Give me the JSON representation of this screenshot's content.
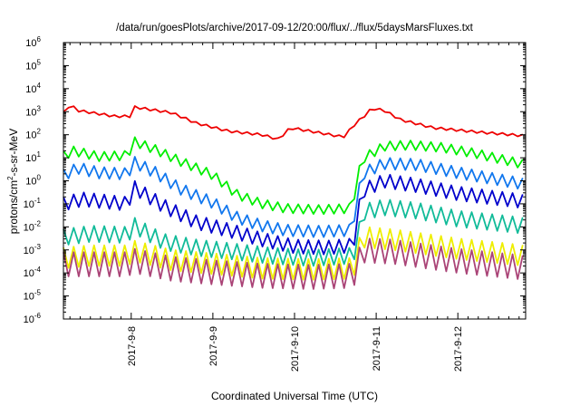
{
  "chart_data": {
    "type": "line",
    "title": "/data/run/goesPlots/archive/2017-09-12/20:00/flux/../flux/5daysMarsFluxes.txt",
    "xlabel": "Coordinated Universal Time (UTC)",
    "ylabel": "protons/cm2-s-sr-MeV",
    "ylabel_parts": {
      "pre": "protons/cm",
      "sup": "2",
      "post": "-s-sr-MeV"
    },
    "y_scale": "log",
    "y_ticks": [
      {
        "base": "10",
        "exp": "-6"
      },
      {
        "base": "10",
        "exp": "-5"
      },
      {
        "base": "10",
        "exp": "-4"
      },
      {
        "base": "10",
        "exp": "-3"
      },
      {
        "base": "10",
        "exp": "-2"
      },
      {
        "base": "10",
        "exp": "-1"
      },
      {
        "base": "10",
        "exp": "0"
      },
      {
        "base": "10",
        "exp": "1"
      },
      {
        "base": "10",
        "exp": "2"
      },
      {
        "base": "10",
        "exp": "3"
      },
      {
        "base": "10",
        "exp": "4"
      },
      {
        "base": "10",
        "exp": "5"
      },
      {
        "base": "10",
        "exp": "6"
      }
    ],
    "ylim": [
      1e-06,
      1000000.0
    ],
    "x_ticks": [
      {
        "day": 8,
        "label": "2017-9-8"
      },
      {
        "day": 9,
        "label": "2017-9-9"
      },
      {
        "day": 10,
        "label": "2017-9-10"
      },
      {
        "day": 11,
        "label": "2017-9-11"
      },
      {
        "day": 12,
        "label": "2017-9-12"
      }
    ],
    "x_range_days": [
      7.17,
      12.83
    ],
    "grid": false,
    "legend": "none",
    "series": [
      {
        "color": "#ee0000",
        "sawtooth_depth_log10": 0.1,
        "anchors": [
          [
            7.17,
            3.0
          ],
          [
            7.25,
            3.35
          ],
          [
            7.35,
            3.1
          ],
          [
            7.8,
            2.85
          ],
          [
            8.0,
            2.85
          ],
          [
            8.04,
            3.25
          ],
          [
            8.5,
            3.0
          ],
          [
            8.8,
            2.55
          ],
          [
            9.2,
            2.2
          ],
          [
            9.6,
            2.05
          ],
          [
            9.8,
            1.85
          ],
          [
            9.95,
            2.35
          ],
          [
            10.2,
            2.2
          ],
          [
            10.6,
            1.95
          ],
          [
            10.75,
            2.55
          ],
          [
            10.85,
            2.85
          ],
          [
            10.95,
            3.2
          ],
          [
            11.1,
            3.1
          ],
          [
            11.3,
            2.7
          ],
          [
            11.7,
            2.35
          ],
          [
            12.3,
            2.15
          ],
          [
            12.83,
            2.0
          ]
        ]
      },
      {
        "color": "#00ee00",
        "sawtooth_depth_log10": 0.4,
        "anchors": [
          [
            7.17,
            1.3
          ],
          [
            7.3,
            1.5
          ],
          [
            7.6,
            1.25
          ],
          [
            7.95,
            1.3
          ],
          [
            8.04,
            1.9
          ],
          [
            8.3,
            1.55
          ],
          [
            8.6,
            1.05
          ],
          [
            9.0,
            0.45
          ],
          [
            9.3,
            -0.4
          ],
          [
            9.6,
            -0.8
          ],
          [
            9.9,
            -1.0
          ],
          [
            10.3,
            -1.05
          ],
          [
            10.7,
            -1.0
          ],
          [
            10.78,
            0.5
          ],
          [
            10.85,
            1.2
          ],
          [
            11.1,
            1.7
          ],
          [
            11.4,
            1.75
          ],
          [
            11.8,
            1.65
          ],
          [
            12.2,
            1.4
          ],
          [
            12.83,
            0.9
          ]
        ]
      },
      {
        "color": "#1177ee",
        "sawtooth_depth_log10": 0.5,
        "anchors": [
          [
            7.17,
            0.5
          ],
          [
            7.35,
            0.8
          ],
          [
            7.6,
            0.6
          ],
          [
            7.95,
            0.55
          ],
          [
            8.04,
            1.05
          ],
          [
            8.3,
            0.6
          ],
          [
            8.6,
            -0.1
          ],
          [
            9.0,
            -0.7
          ],
          [
            9.3,
            -1.35
          ],
          [
            9.6,
            -1.7
          ],
          [
            9.9,
            -1.9
          ],
          [
            10.3,
            -1.95
          ],
          [
            10.7,
            -1.9
          ],
          [
            10.78,
            -0.3
          ],
          [
            10.85,
            0.6
          ],
          [
            11.1,
            1.0
          ],
          [
            11.5,
            0.95
          ],
          [
            12.0,
            0.6
          ],
          [
            12.83,
            0.1
          ]
        ]
      },
      {
        "color": "#0000cc",
        "sawtooth_depth_log10": 0.6,
        "anchors": [
          [
            7.17,
            -0.7
          ],
          [
            7.4,
            -0.5
          ],
          [
            7.95,
            -0.7
          ],
          [
            8.04,
            0.0
          ],
          [
            8.4,
            -0.8
          ],
          [
            8.8,
            -1.5
          ],
          [
            9.2,
            -1.85
          ],
          [
            9.6,
            -2.25
          ],
          [
            10.0,
            -2.55
          ],
          [
            10.4,
            -2.6
          ],
          [
            10.72,
            -2.5
          ],
          [
            10.78,
            -1.0
          ],
          [
            10.85,
            -0.1
          ],
          [
            11.1,
            0.3
          ],
          [
            11.5,
            0.1
          ],
          [
            12.0,
            -0.25
          ],
          [
            12.83,
            -0.6
          ]
        ]
      },
      {
        "color": "#11bb99",
        "sawtooth_depth_log10": 0.7,
        "anchors": [
          [
            7.17,
            -2.1
          ],
          [
            7.5,
            -1.95
          ],
          [
            7.95,
            -2.0
          ],
          [
            8.04,
            -1.6
          ],
          [
            8.4,
            -2.3
          ],
          [
            8.8,
            -2.55
          ],
          [
            9.2,
            -2.7
          ],
          [
            9.7,
            -2.9
          ],
          [
            10.2,
            -3.0
          ],
          [
            10.72,
            -2.9
          ],
          [
            10.78,
            -2.0
          ],
          [
            10.85,
            -1.0
          ],
          [
            11.1,
            -0.8
          ],
          [
            11.5,
            -0.95
          ],
          [
            12.0,
            -1.3
          ],
          [
            12.83,
            -1.6
          ]
        ]
      },
      {
        "color": "#eeee00",
        "sawtooth_depth_log10": 0.9,
        "anchors": [
          [
            7.17,
            -2.9
          ],
          [
            7.5,
            -2.8
          ],
          [
            7.95,
            -2.8
          ],
          [
            8.04,
            -2.6
          ],
          [
            8.5,
            -3.0
          ],
          [
            9.0,
            -3.15
          ],
          [
            9.6,
            -3.35
          ],
          [
            10.2,
            -3.4
          ],
          [
            10.72,
            -3.35
          ],
          [
            10.78,
            -2.6
          ],
          [
            10.85,
            -2.0
          ],
          [
            11.2,
            -2.1
          ],
          [
            11.6,
            -2.3
          ],
          [
            12.0,
            -2.5
          ],
          [
            12.83,
            -2.8
          ]
        ]
      },
      {
        "color": "#aa4477",
        "sawtooth_depth_log10": 1.05,
        "anchors": [
          [
            7.17,
            -3.1
          ],
          [
            7.5,
            -3.1
          ],
          [
            7.95,
            -3.1
          ],
          [
            8.04,
            -2.95
          ],
          [
            8.5,
            -3.3
          ],
          [
            9.0,
            -3.45
          ],
          [
            9.6,
            -3.6
          ],
          [
            10.2,
            -3.65
          ],
          [
            10.72,
            -3.6
          ],
          [
            10.78,
            -3.0
          ],
          [
            10.85,
            -2.5
          ],
          [
            11.2,
            -2.55
          ],
          [
            11.6,
            -2.75
          ],
          [
            12.0,
            -2.95
          ],
          [
            12.83,
            -3.25
          ]
        ]
      }
    ]
  }
}
